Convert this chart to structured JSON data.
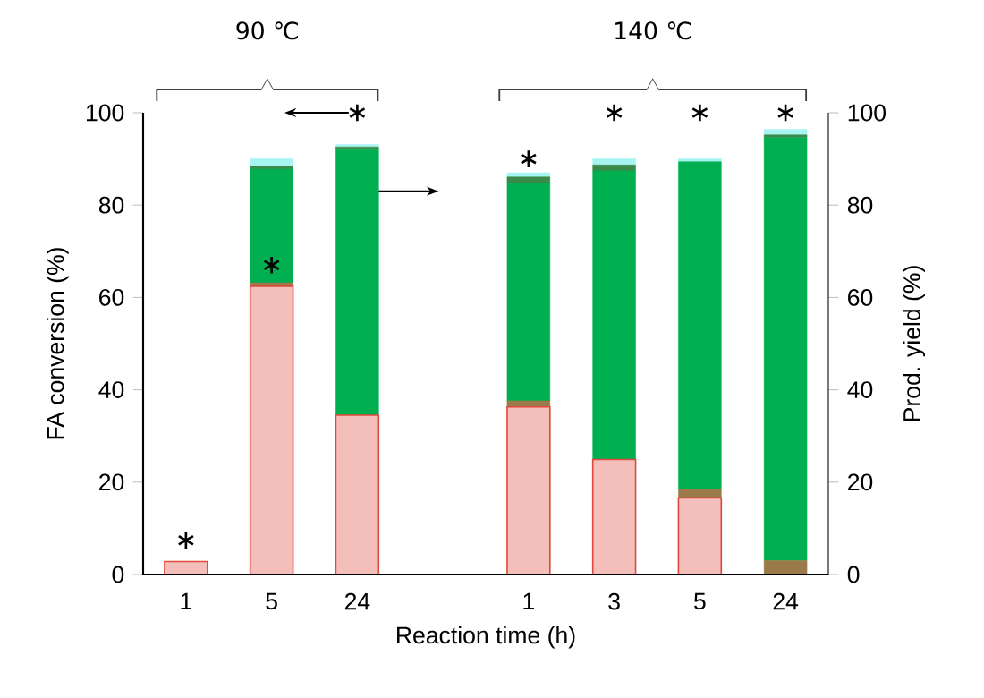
{
  "chart_data": {
    "type": "bar",
    "stacked": true,
    "categories": [
      "1",
      "5",
      "24",
      null,
      "1",
      "3",
      "5",
      "24"
    ],
    "xlabel": "Reaction time (h)",
    "ylabel": "FA conversion (%)",
    "y2label": "Prod. yield (%)",
    "ylim": [
      0,
      100
    ],
    "yticks": [
      0,
      20,
      40,
      60,
      80,
      100
    ],
    "y2lim": [
      0,
      100
    ],
    "y2ticks": [
      0,
      20,
      40,
      60,
      80,
      100
    ],
    "annotations": [
      "90 ℃",
      "140 ℃"
    ],
    "series": [
      {
        "axis": "y2",
        "color": "#e0483c",
        "values": [
          2.8,
          62.4,
          34.5,
          null,
          36.3,
          24.9,
          16.6,
          0
        ]
      },
      {
        "axis": "y2",
        "color": "#9b7a4a",
        "values": [
          0,
          0.8,
          0,
          null,
          1.3,
          0,
          1.9,
          3.0
        ]
      },
      {
        "axis": "y2",
        "color": "#00b050",
        "values": [
          0,
          24.6,
          57.5,
          null,
          47.2,
          62.5,
          70.9,
          91.6
        ]
      },
      {
        "axis": "y2",
        "color": "#3a8a4a",
        "values": [
          0,
          0.6,
          0.6,
          null,
          1.3,
          1.3,
          0,
          0.6
        ]
      },
      {
        "axis": "y2",
        "color": "#a6f5f2",
        "values": [
          0,
          1.6,
          0.5,
          null,
          0.9,
          1.3,
          0.6,
          1.2
        ]
      },
      {
        "type": "scatter",
        "axis": "y",
        "color": "#000000",
        "marker": "cross",
        "values": [
          7.4,
          67,
          100,
          null,
          90,
          100,
          100,
          100
        ]
      }
    ]
  }
}
